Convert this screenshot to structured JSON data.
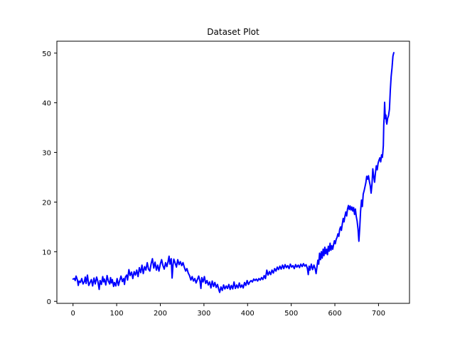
{
  "chart_data": {
    "type": "line",
    "title": "Dataset Plot",
    "xlabel": "",
    "ylabel": "",
    "xlim": [
      -37,
      771
    ],
    "ylim": [
      -0.4,
      52.4
    ],
    "xticks": [
      0,
      100,
      200,
      300,
      400,
      500,
      600,
      700
    ],
    "yticks": [
      0,
      10,
      20,
      30,
      40,
      50
    ],
    "grid": false,
    "line_color": "#0000ff",
    "series": [
      {
        "points": [
          [
            0,
            4.5
          ],
          [
            3,
            4.6
          ],
          [
            5,
            4.2
          ],
          [
            7,
            5.1
          ],
          [
            10,
            4.3
          ],
          [
            12,
            3.2
          ],
          [
            14,
            4.1
          ],
          [
            17,
            3.8
          ],
          [
            20,
            4.6
          ],
          [
            23,
            3.5
          ],
          [
            26,
            4.0
          ],
          [
            28,
            4.9
          ],
          [
            30,
            3.6
          ],
          [
            33,
            5.3
          ],
          [
            36,
            3.2
          ],
          [
            39,
            3.8
          ],
          [
            42,
            4.4
          ],
          [
            45,
            3.1
          ],
          [
            48,
            4.7
          ],
          [
            51,
            3.5
          ],
          [
            54,
            4.9
          ],
          [
            57,
            4.0
          ],
          [
            60,
            2.4
          ],
          [
            62,
            4.2
          ],
          [
            65,
            3.4
          ],
          [
            68,
            5.0
          ],
          [
            70,
            3.9
          ],
          [
            72,
            4.5
          ],
          [
            75,
            3.3
          ],
          [
            78,
            5.2
          ],
          [
            81,
            4.1
          ],
          [
            84,
            3.5
          ],
          [
            86,
            4.8
          ],
          [
            88,
            3.7
          ],
          [
            90,
            4.4
          ],
          [
            93,
            3.0
          ],
          [
            95,
            3.8
          ],
          [
            98,
            3.1
          ],
          [
            101,
            4.6
          ],
          [
            104,
            3.2
          ],
          [
            107,
            4.2
          ],
          [
            110,
            5.1
          ],
          [
            113,
            4.0
          ],
          [
            116,
            4.6
          ],
          [
            118,
            3.4
          ],
          [
            120,
            4.9
          ],
          [
            123,
            5.3
          ],
          [
            125,
            4.3
          ],
          [
            128,
            6.4
          ],
          [
            131,
            5.2
          ],
          [
            134,
            5.9
          ],
          [
            137,
            4.6
          ],
          [
            140,
            6.0
          ],
          [
            143,
            5.3
          ],
          [
            146,
            6.3
          ],
          [
            149,
            5.0
          ],
          [
            152,
            6.8
          ],
          [
            155,
            5.8
          ],
          [
            158,
            7.3
          ],
          [
            161,
            5.6
          ],
          [
            164,
            7.0
          ],
          [
            167,
            6.3
          ],
          [
            170,
            7.8
          ],
          [
            173,
            6.5
          ],
          [
            176,
            6.1
          ],
          [
            179,
            7.6
          ],
          [
            182,
            8.6
          ],
          [
            185,
            6.7
          ],
          [
            188,
            7.9
          ],
          [
            191,
            6.3
          ],
          [
            194,
            7.3
          ],
          [
            197,
            6.1
          ],
          [
            200,
            7.5
          ],
          [
            203,
            8.4
          ],
          [
            206,
            7.2
          ],
          [
            209,
            6.5
          ],
          [
            212,
            7.8
          ],
          [
            215,
            7.0
          ],
          [
            218,
            8.1
          ],
          [
            220,
            9.1
          ],
          [
            222,
            7.5
          ],
          [
            225,
            8.6
          ],
          [
            227,
            4.7
          ],
          [
            229,
            7.3
          ],
          [
            231,
            8.5
          ],
          [
            234,
            7.7
          ],
          [
            237,
            6.9
          ],
          [
            240,
            8.4
          ],
          [
            243,
            7.4
          ],
          [
            246,
            8.0
          ],
          [
            249,
            7.2
          ],
          [
            252,
            7.8
          ],
          [
            255,
            6.9
          ],
          [
            258,
            6.1
          ],
          [
            261,
            6.6
          ],
          [
            264,
            5.7
          ],
          [
            267,
            5.2
          ],
          [
            270,
            4.3
          ],
          [
            273,
            5.0
          ],
          [
            276,
            4.1
          ],
          [
            279,
            4.6
          ],
          [
            282,
            3.7
          ],
          [
            285,
            4.4
          ],
          [
            288,
            5.1
          ],
          [
            291,
            4.1
          ],
          [
            293,
            2.6
          ],
          [
            295,
            4.8
          ],
          [
            298,
            3.9
          ],
          [
            301,
            5.0
          ],
          [
            304,
            3.6
          ],
          [
            307,
            4.2
          ],
          [
            310,
            3.3
          ],
          [
            313,
            3.9
          ],
          [
            316,
            2.7
          ],
          [
            319,
            4.1
          ],
          [
            322,
            3.0
          ],
          [
            325,
            3.8
          ],
          [
            328,
            2.8
          ],
          [
            331,
            3.4
          ],
          [
            334,
            2.4
          ],
          [
            336,
            1.8
          ],
          [
            339,
            2.9
          ],
          [
            342,
            2.2
          ],
          [
            345,
            3.3
          ],
          [
            348,
            2.5
          ],
          [
            351,
            3.1
          ],
          [
            354,
            2.6
          ],
          [
            357,
            3.4
          ],
          [
            360,
            2.4
          ],
          [
            363,
            3.2
          ],
          [
            366,
            2.5
          ],
          [
            369,
            3.9
          ],
          [
            372,
            2.6
          ],
          [
            375,
            3.3
          ],
          [
            378,
            2.7
          ],
          [
            381,
            3.7
          ],
          [
            384,
            2.8
          ],
          [
            387,
            3.3
          ],
          [
            390,
            2.7
          ],
          [
            393,
            3.8
          ],
          [
            396,
            3.2
          ],
          [
            399,
            4.2
          ],
          [
            402,
            3.4
          ],
          [
            405,
            3.9
          ],
          [
            408,
            4.2
          ],
          [
            411,
            3.9
          ],
          [
            414,
            4.5
          ],
          [
            417,
            4.2
          ],
          [
            420,
            4.5
          ],
          [
            423,
            4.1
          ],
          [
            426,
            4.6
          ],
          [
            429,
            4.3
          ],
          [
            432,
            4.8
          ],
          [
            435,
            4.4
          ],
          [
            438,
            5.2
          ],
          [
            441,
            4.6
          ],
          [
            444,
            6.3
          ],
          [
            447,
            5.3
          ],
          [
            450,
            6.0
          ],
          [
            453,
            5.4
          ],
          [
            456,
            6.3
          ],
          [
            459,
            5.7
          ],
          [
            462,
            6.6
          ],
          [
            465,
            6.1
          ],
          [
            468,
            6.9
          ],
          [
            471,
            6.4
          ],
          [
            474,
            7.1
          ],
          [
            477,
            6.5
          ],
          [
            480,
            7.3
          ],
          [
            483,
            6.6
          ],
          [
            486,
            7.4
          ],
          [
            489,
            6.8
          ],
          [
            492,
            7.2
          ],
          [
            495,
            6.6
          ],
          [
            498,
            7.5
          ],
          [
            501,
            6.9
          ],
          [
            504,
            7.2
          ],
          [
            507,
            6.6
          ],
          [
            510,
            7.4
          ],
          [
            513,
            6.9
          ],
          [
            516,
            7.3
          ],
          [
            519,
            6.8
          ],
          [
            522,
            7.5
          ],
          [
            525,
            7.0
          ],
          [
            528,
            7.6
          ],
          [
            531,
            7.1
          ],
          [
            534,
            7.4
          ],
          [
            537,
            6.6
          ],
          [
            539,
            5.4
          ],
          [
            541,
            7.1
          ],
          [
            543,
            6.3
          ],
          [
            546,
            7.5
          ],
          [
            549,
            6.4
          ],
          [
            552,
            7.3
          ],
          [
            555,
            6.5
          ],
          [
            557,
            5.6
          ],
          [
            559,
            7.0
          ],
          [
            561,
            8.3
          ],
          [
            563,
            7.5
          ],
          [
            565,
            9.7
          ],
          [
            567,
            8.4
          ],
          [
            569,
            10.0
          ],
          [
            571,
            8.7
          ],
          [
            573,
            10.5
          ],
          [
            575,
            9.2
          ],
          [
            577,
            10.9
          ],
          [
            579,
            9.6
          ],
          [
            581,
            10.5
          ],
          [
            583,
            9.4
          ],
          [
            585,
            11.1
          ],
          [
            587,
            10.1
          ],
          [
            589,
            11.7
          ],
          [
            591,
            10.3
          ],
          [
            593,
            11.2
          ],
          [
            595,
            10.5
          ],
          [
            597,
            11.4
          ],
          [
            599,
            12.2
          ],
          [
            601,
            11.6
          ],
          [
            603,
            12.5
          ],
          [
            605,
            12.9
          ],
          [
            607,
            13.6
          ],
          [
            609,
            13.1
          ],
          [
            611,
            14.5
          ],
          [
            613,
            15.0
          ],
          [
            615,
            14.3
          ],
          [
            617,
            15.6
          ],
          [
            619,
            16.7
          ],
          [
            621,
            16.0
          ],
          [
            623,
            17.1
          ],
          [
            625,
            18.0
          ],
          [
            627,
            17.2
          ],
          [
            629,
            18.6
          ],
          [
            631,
            19.3
          ],
          [
            633,
            18.5
          ],
          [
            635,
            19.2
          ],
          [
            637,
            18.4
          ],
          [
            639,
            19.0
          ],
          [
            641,
            18.2
          ],
          [
            643,
            18.9
          ],
          [
            645,
            17.5
          ],
          [
            647,
            18.6
          ],
          [
            649,
            17.1
          ],
          [
            651,
            16.2
          ],
          [
            653,
            14.6
          ],
          [
            655,
            12.1
          ],
          [
            657,
            14.8
          ],
          [
            659,
            18.2
          ],
          [
            661,
            20.4
          ],
          [
            663,
            19.1
          ],
          [
            665,
            21.6
          ],
          [
            667,
            22.3
          ],
          [
            669,
            23.1
          ],
          [
            671,
            23.9
          ],
          [
            673,
            25.2
          ],
          [
            675,
            24.6
          ],
          [
            677,
            25.3
          ],
          [
            679,
            24.2
          ],
          [
            681,
            23.3
          ],
          [
            683,
            21.8
          ],
          [
            685,
            23.5
          ],
          [
            687,
            26.7
          ],
          [
            689,
            25.1
          ],
          [
            691,
            24.0
          ],
          [
            693,
            25.9
          ],
          [
            695,
            27.3
          ],
          [
            697,
            26.5
          ],
          [
            699,
            27.8
          ],
          [
            701,
            28.4
          ],
          [
            703,
            28.9
          ],
          [
            705,
            28.1
          ],
          [
            707,
            29.5
          ],
          [
            709,
            29.0
          ],
          [
            710,
            30.2
          ],
          [
            711,
            31.4
          ],
          [
            712,
            35.6
          ],
          [
            713,
            37.2
          ],
          [
            714,
            40.1
          ],
          [
            715,
            38.0
          ],
          [
            716,
            36.8
          ],
          [
            717,
            37.5
          ],
          [
            718,
            36.1
          ],
          [
            719,
            35.7
          ],
          [
            721,
            36.9
          ],
          [
            723,
            37.4
          ],
          [
            725,
            38.7
          ],
          [
            727,
            42.5
          ],
          [
            729,
            45.3
          ],
          [
            731,
            47.0
          ],
          [
            733,
            49.4
          ],
          [
            735,
            50.1
          ]
        ]
      }
    ]
  }
}
